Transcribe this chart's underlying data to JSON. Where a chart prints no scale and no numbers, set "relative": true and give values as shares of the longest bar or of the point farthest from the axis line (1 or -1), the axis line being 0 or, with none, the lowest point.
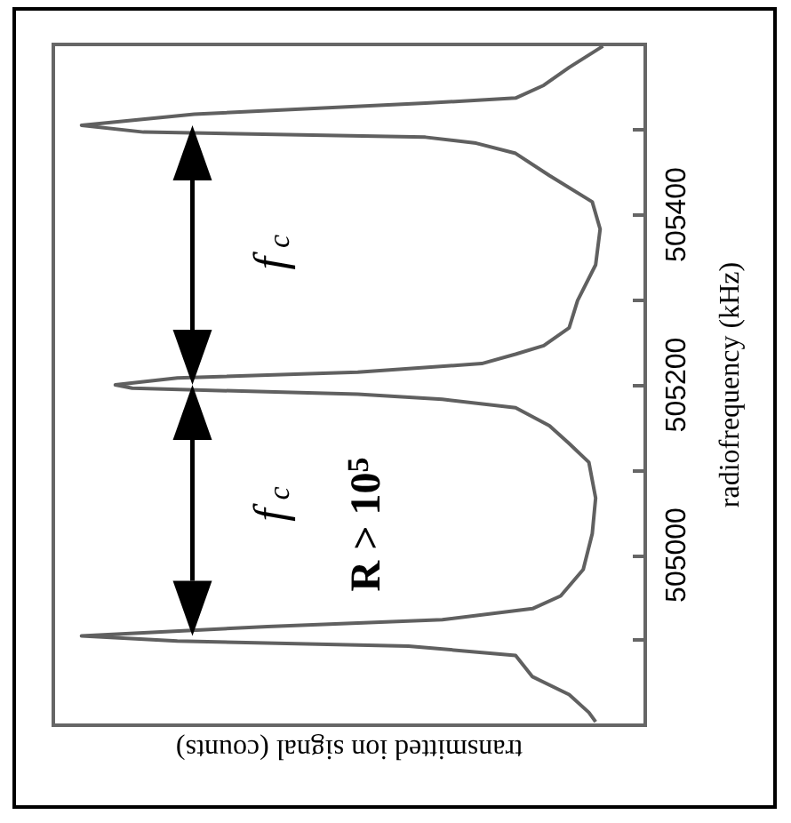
{
  "chart_data": {
    "type": "line",
    "orientation": "horizontal",
    "relative": true,
    "xlabel": "transmitted ion signal (counts)",
    "ylabel": "radiofrequency (kHz)",
    "ylim": [
      504800,
      505600
    ],
    "yticks": [
      {
        "value": 504900,
        "label": null
      },
      505000,
      {
        "value": 505100,
        "label": null
      },
      505200,
      {
        "value": 505300,
        "label": null
      },
      505400,
      {
        "value": 505500,
        "label": null
      }
    ],
    "x": [
      504804,
      504815,
      504836,
      504857,
      504882,
      504893,
      504899,
      504905,
      504916,
      504924,
      504937,
      504952,
      504983,
      505025,
      505067,
      505109,
      505131,
      505152,
      505173,
      505183,
      505189,
      505196,
      505200,
      505208,
      505215,
      505225,
      505236,
      505246,
      505267,
      505299,
      505341,
      505383,
      505415,
      505446,
      505472,
      505484,
      505491,
      505497,
      505505,
      505518,
      505531,
      505537,
      505552,
      505573,
      505598
    ],
    "series": [
      {
        "color": "#606060",
        "values": [
          -0.088,
          -0.1,
          -0.135,
          -0.2,
          -0.23,
          -0.42,
          -0.83,
          -1.0,
          -0.67,
          -0.36,
          -0.2,
          -0.15,
          -0.11,
          -0.094,
          -0.088,
          -0.1,
          -0.135,
          -0.17,
          -0.23,
          -0.36,
          -0.51,
          -0.91,
          -0.94,
          -0.83,
          -0.51,
          -0.29,
          -0.23,
          -0.18,
          -0.135,
          -0.12,
          -0.088,
          -0.08,
          -0.094,
          -0.17,
          -0.23,
          -0.3,
          -0.39,
          -0.89,
          -1.0,
          -0.8,
          -0.39,
          -0.23,
          -0.18,
          -0.135,
          -0.075
        ]
      }
    ],
    "annotations": [
      "f$_{c}$",
      "f$_{c}$",
      "R > 10$^{5}$"
    ],
    "marker": "none",
    "line_style": "solid"
  }
}
